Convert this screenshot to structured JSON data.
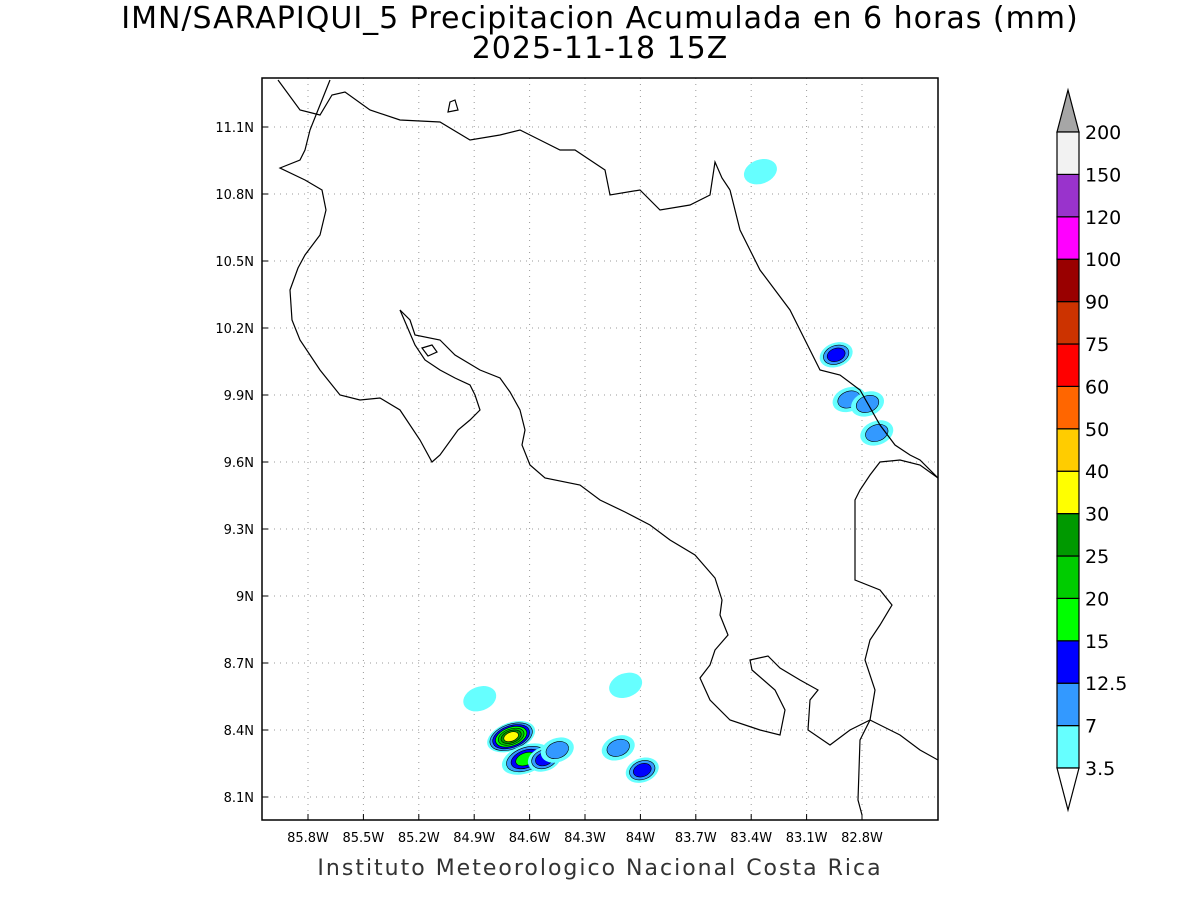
{
  "title": {
    "line1": "IMN/SARAPIQUI_5 Precipitacion Acumulada en 6 horas (mm)",
    "line2": "2025-11-18 15Z"
  },
  "footer": "Instituto Meteorologico Nacional Costa Rica",
  "map": {
    "lon_range": [
      -86.05,
      -83.05
    ],
    "lat_range": [
      8.0,
      11.3
    ],
    "x_ticks": [
      {
        "lon": -85.8,
        "label": "85.8W"
      },
      {
        "lon": -85.5,
        "label": "85.5W"
      },
      {
        "lon": -85.2,
        "label": "85.2W"
      },
      {
        "lon": -84.9,
        "label": "84.9W"
      },
      {
        "lon": -84.6,
        "label": "84.6W"
      },
      {
        "lon": -84.3,
        "label": "84.3W"
      },
      {
        "lon": -84.0,
        "label": "84W"
      },
      {
        "lon": -83.7,
        "label": "83.7W"
      },
      {
        "lon": -83.4,
        "label": "83.4W"
      },
      {
        "lon": -83.1,
        "label": "83.1W"
      },
      {
        "lon": -82.8,
        "label": "82.8W"
      }
    ],
    "y_ticks": [
      {
        "lat": 11.1,
        "label": "11.1N"
      },
      {
        "lat": 10.8,
        "label": "10.8N"
      },
      {
        "lat": 10.5,
        "label": "10.5N"
      },
      {
        "lat": 10.2,
        "label": "10.2N"
      },
      {
        "lat": 9.9,
        "label": "9.9N"
      },
      {
        "lat": 9.6,
        "label": "9.6N"
      },
      {
        "lat": 9.3,
        "label": "9.3N"
      },
      {
        "lat": 9.0,
        "label": "9N"
      },
      {
        "lat": 8.7,
        "label": "8.7N"
      },
      {
        "lat": 8.4,
        "label": "8.4N"
      },
      {
        "lat": 8.1,
        "label": "8.1N"
      }
    ],
    "grid": "dotted"
  },
  "colorbar": {
    "labels": [
      "3.5",
      "7",
      "12.5",
      "15",
      "20",
      "25",
      "30",
      "40",
      "50",
      "60",
      "75",
      "90",
      "100",
      "120",
      "150",
      "200"
    ],
    "colors": [
      "#66ffff",
      "#3399ff",
      "#0000ff",
      "#00ff00",
      "#00cc00",
      "#009900",
      "#ffff00",
      "#ffcc00",
      "#ff6600",
      "#ff0000",
      "#cc3300",
      "#990000",
      "#ff00ff",
      "#9933cc",
      "#f2f2f2"
    ],
    "over_color": "#a6a6a6",
    "under_color": "#ffffff"
  },
  "precip_cells": [
    {
      "lon": -84.7,
      "lat": 8.37,
      "level": 6
    },
    {
      "lon": -84.62,
      "lat": 8.27,
      "level": 3
    },
    {
      "lon": -84.52,
      "lat": 8.27,
      "level": 2
    },
    {
      "lon": -84.45,
      "lat": 8.31,
      "level": 1
    },
    {
      "lon": -84.87,
      "lat": 8.54,
      "level": 0
    },
    {
      "lon": -84.12,
      "lat": 8.32,
      "level": 1
    },
    {
      "lon": -83.99,
      "lat": 8.22,
      "level": 2
    },
    {
      "lon": -84.08,
      "lat": 8.6,
      "level": 0
    },
    {
      "lon": -83.35,
      "lat": 10.9,
      "level": 0
    },
    {
      "lon": -82.94,
      "lat": 10.08,
      "level": 2
    },
    {
      "lon": -82.87,
      "lat": 9.88,
      "level": 1
    },
    {
      "lon": -82.77,
      "lat": 9.86,
      "level": 1
    },
    {
      "lon": -82.72,
      "lat": 9.73,
      "level": 1
    }
  ]
}
